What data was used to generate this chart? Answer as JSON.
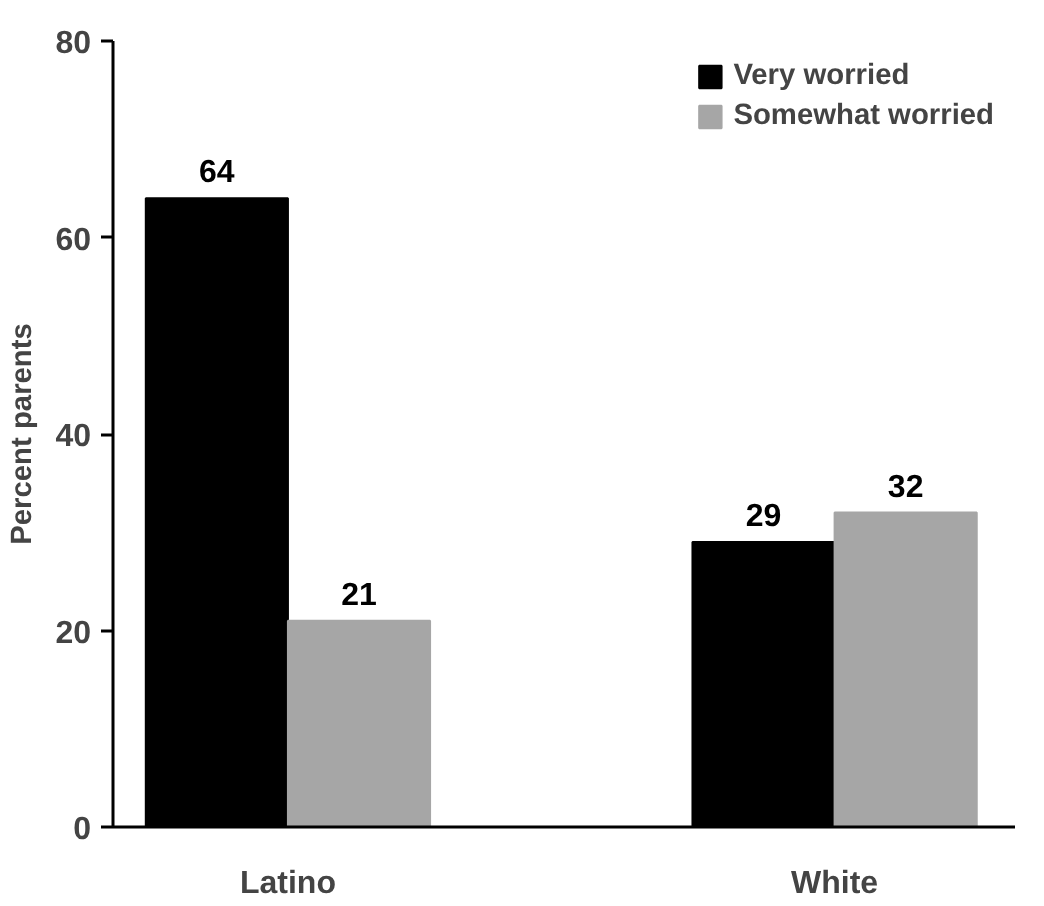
{
  "chart_data": {
    "type": "bar",
    "categories": [
      "Latino",
      "White"
    ],
    "ylabel": "Percent parents",
    "ylim": [
      0,
      80
    ],
    "yticks": [
      0,
      20,
      40,
      60,
      80
    ],
    "grid": false,
    "legend": "top right",
    "data_labels": true,
    "series": [
      {
        "name": "Very worried",
        "color": "#000000",
        "values": [
          64,
          29
        ]
      },
      {
        "name": "Somewhat worried",
        "color": "#a6a6a6",
        "values": [
          21,
          32
        ]
      }
    ]
  }
}
